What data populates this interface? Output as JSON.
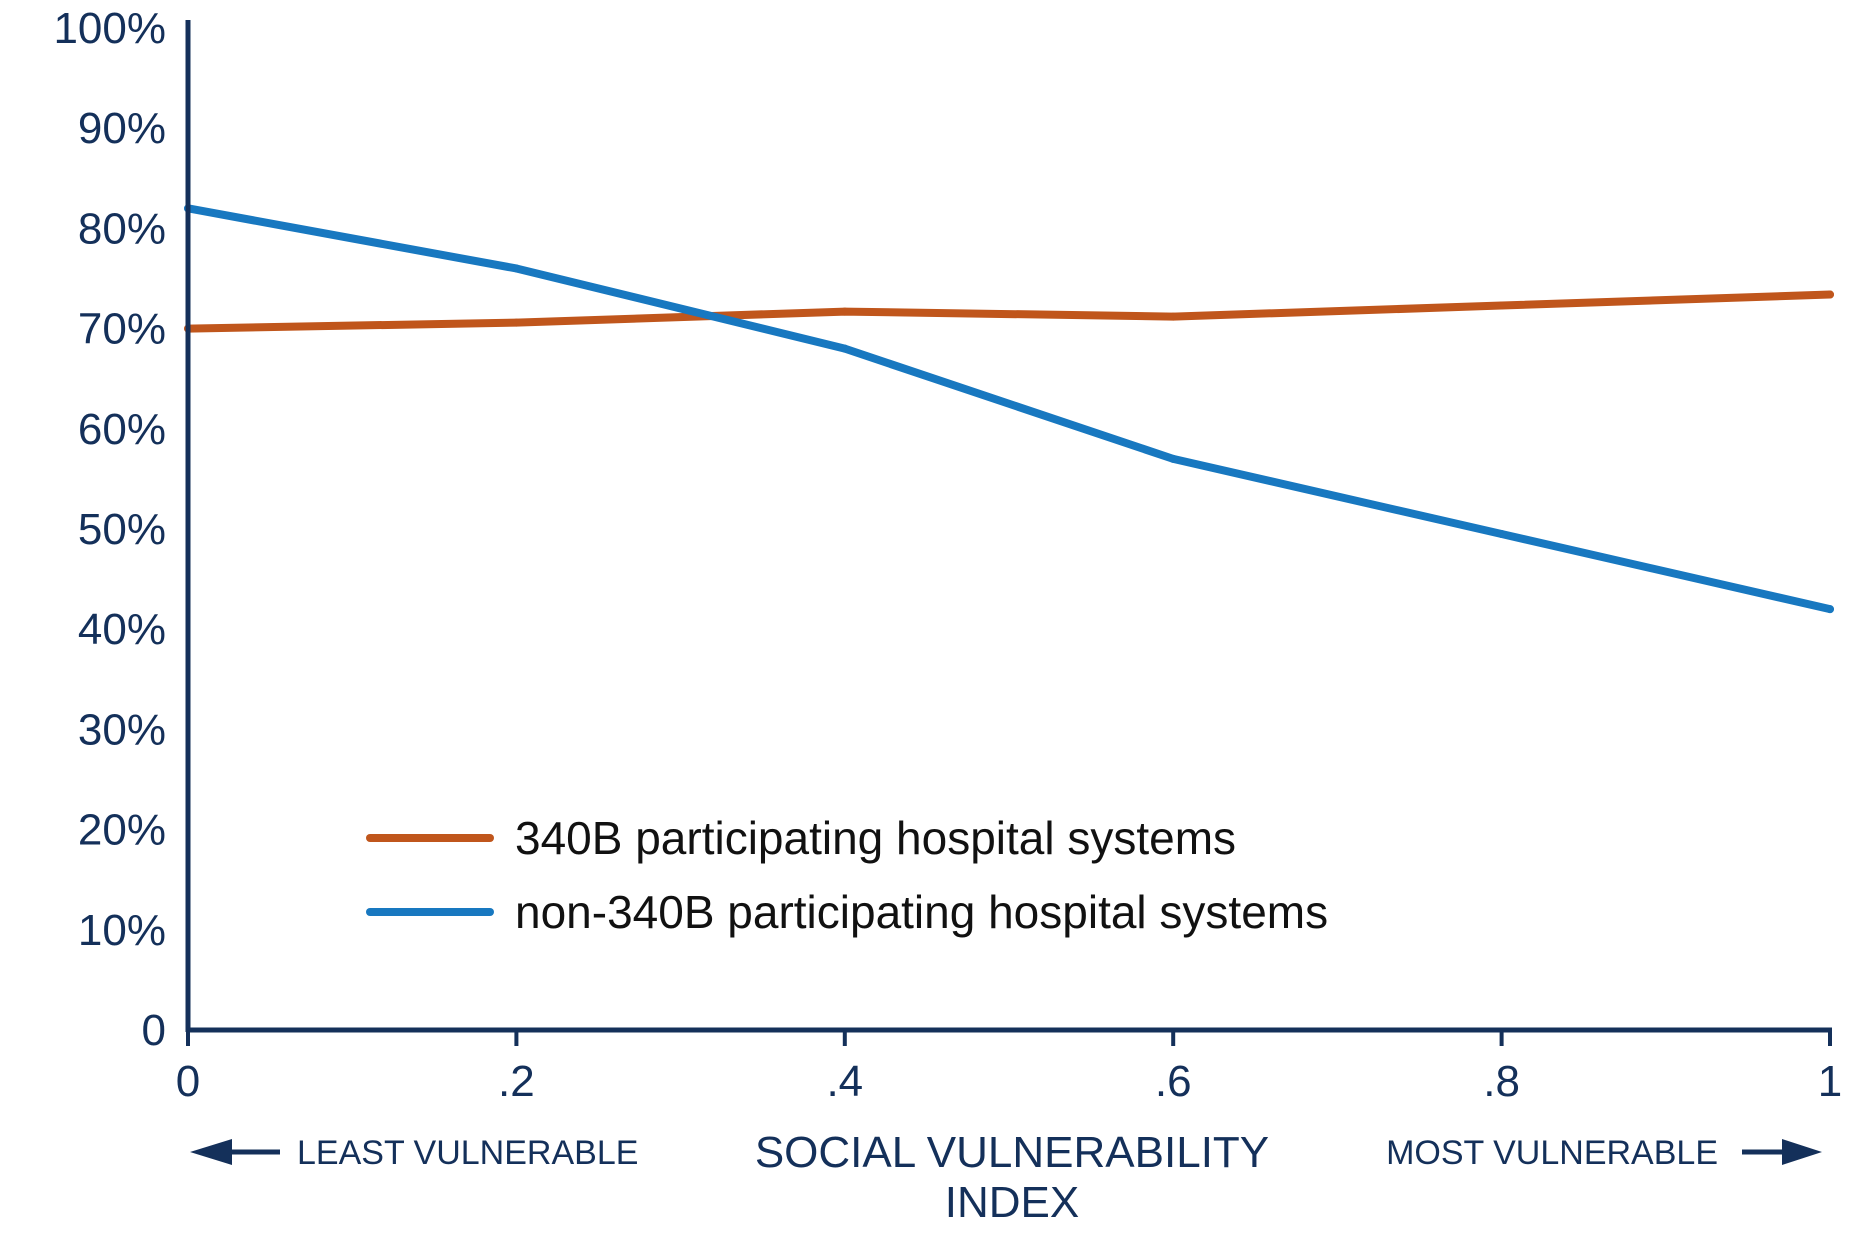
{
  "chart_data": {
    "type": "line",
    "title": "",
    "xlabel": "SOCIAL VULNERABILITY INDEX",
    "xlabel_lines": [
      "SOCIAL VULNERABILITY",
      "INDEX"
    ],
    "ylabel": "",
    "xlim": [
      0,
      1
    ],
    "ylim": [
      0,
      100
    ],
    "x_ticks": [
      0,
      0.2,
      0.4,
      0.6,
      0.8,
      1
    ],
    "x_tick_labels": [
      "0",
      ".2",
      ".4",
      ".6",
      ".8",
      "1"
    ],
    "y_ticks": [
      0,
      10,
      20,
      30,
      40,
      50,
      60,
      70,
      80,
      90,
      100
    ],
    "y_tick_labels": [
      "0",
      "10%",
      "20%",
      "30%",
      "40%",
      "50%",
      "60%",
      "70%",
      "80%",
      "90%",
      "100%"
    ],
    "grid": false,
    "legend_position": "lower-center",
    "annotations": {
      "left": "LEAST VULNERABLE",
      "right": "MOST VULNERABLE"
    },
    "series": [
      {
        "name": "340B participating hospital systems",
        "color": "#c0561c",
        "x": [
          0,
          0.2,
          0.4,
          0.6,
          0.8,
          1
        ],
        "y": [
          70,
          70.6,
          71.7,
          71.2,
          72.3,
          73.4
        ]
      },
      {
        "name": "non-340B participating hospital systems",
        "color": "#1878c0",
        "x": [
          0,
          0.2,
          0.4,
          0.6,
          0.8,
          1
        ],
        "y": [
          82,
          76,
          68,
          57,
          49.5,
          42
        ]
      }
    ]
  },
  "colors": {
    "axis": "#14305a",
    "text": "#14305a"
  }
}
